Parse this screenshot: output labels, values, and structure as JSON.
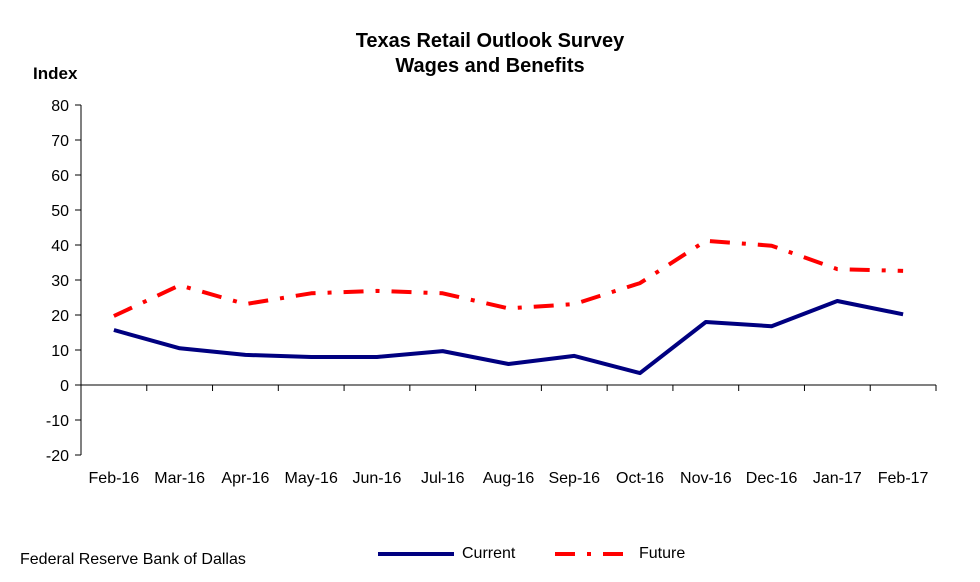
{
  "chart_data": {
    "type": "line",
    "title": "Texas Retail Outlook Survey",
    "subtitle": "Wages and Benefits",
    "ylabel": "Index",
    "xlabel": "",
    "ylim": [
      -20,
      80
    ],
    "yticks": [
      80,
      70,
      60,
      50,
      40,
      30,
      20,
      10,
      0,
      -10,
      -20
    ],
    "categories": [
      "Feb-16",
      "Mar-16",
      "Apr-16",
      "May-16",
      "Jun-16",
      "Jul-16",
      "Aug-16",
      "Sep-16",
      "Oct-16",
      "Nov-16",
      "Dec-16",
      "Jan-17",
      "Feb-17"
    ],
    "series": [
      {
        "name": "Current",
        "color": "#000080",
        "style": "solid",
        "values": [
          15.7,
          10.5,
          8.6,
          8.0,
          8.0,
          9.7,
          6.0,
          8.3,
          3.4,
          18.0,
          16.8,
          24.0,
          20.2
        ]
      },
      {
        "name": "Future",
        "color": "#ff0000",
        "style": "dash-dot",
        "values": [
          19.7,
          28.5,
          23.1,
          26.2,
          26.9,
          26.2,
          21.9,
          23.1,
          29.1,
          41.2,
          39.8,
          33.1,
          32.6
        ]
      }
    ],
    "grid": false,
    "legend": "bottom"
  },
  "source": "Federal Reserve Bank of Dallas"
}
